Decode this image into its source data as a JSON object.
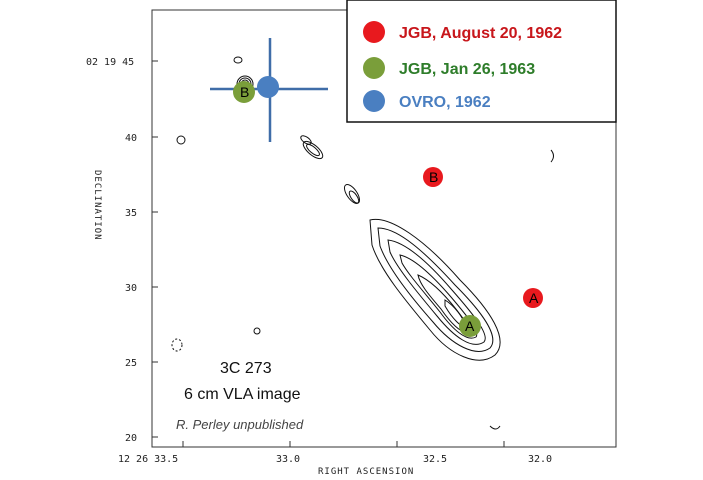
{
  "axes": {
    "dec_label": "DECLINATION",
    "ra_label": "RIGHT ASCENSION",
    "dec_ticks": [
      {
        "label": "02 19 45",
        "value": 45
      },
      {
        "label": "40",
        "value": 40
      },
      {
        "label": "35",
        "value": 35
      },
      {
        "label": "30",
        "value": 30
      },
      {
        "label": "25",
        "value": 25
      },
      {
        "label": "20",
        "value": 20
      }
    ],
    "ra_ticks": [
      {
        "label": "12 26 33.5",
        "value": 33.5
      },
      {
        "label": "33.0",
        "value": 33.0
      },
      {
        "label": "32.5",
        "value": 32.5
      },
      {
        "label": "32.0",
        "value": 32.0
      }
    ]
  },
  "legend": {
    "items": [
      {
        "label": "JGB, August 20, 1962",
        "color": "#e8191e"
      },
      {
        "label": "JGB, Jan 26, 1963",
        "color": "#7a9e3a"
      },
      {
        "label": "OVRO, 1962",
        "color": "#4a7fc1"
      }
    ]
  },
  "caption": {
    "line1": "3C 273",
    "line2": "6 cm VLA image",
    "credit": "R. Perley unpublished"
  },
  "markers": {
    "red_a": "A",
    "red_b": "B",
    "green_a": "A",
    "green_b": "B"
  },
  "colors": {
    "red": "#e8191e",
    "green": "#7a9e3a",
    "blue": "#4a7fc1",
    "cross": "#3f6da8",
    "contour": "#111111"
  }
}
